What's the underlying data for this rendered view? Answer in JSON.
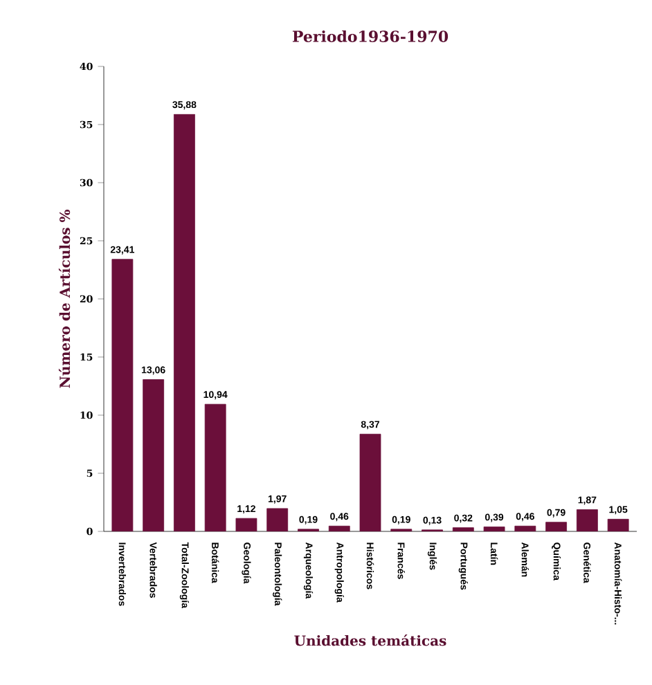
{
  "chart_data": {
    "type": "bar",
    "title": "Periodo1936-1970",
    "xlabel": "Unidades temáticas",
    "ylabel": "Número de  Artículos %",
    "categories": [
      "Invertebrados",
      "Vertebrados",
      "Total-Zoología",
      "Botánica",
      "Geología",
      "Paleontología",
      "Arqueología",
      "Antropología",
      "Históricos",
      "Francés",
      "Inglés",
      "Portugués",
      "Latín",
      "Alemán",
      "Química",
      "Genética",
      "Anatomía-Histo-..."
    ],
    "values": [
      23.41,
      13.06,
      35.88,
      10.94,
      1.12,
      1.97,
      0.19,
      0.46,
      8.37,
      0.19,
      0.13,
      0.32,
      0.39,
      0.46,
      0.79,
      1.87,
      1.05
    ],
    "value_labels": [
      "23,41",
      "13,06",
      "35,88",
      "10,94",
      "1,12",
      "1,97",
      "0,19",
      "0,46",
      "8,37",
      "0,19",
      "0,13",
      "0,32",
      "0,39",
      "0,46",
      "0,79",
      "1,87",
      "1,05"
    ],
    "color": "#6b0f3a",
    "ylim": [
      0,
      40
    ],
    "yticks": [
      0,
      5,
      10,
      15,
      20,
      25,
      30,
      35,
      40
    ],
    "grid": false
  }
}
